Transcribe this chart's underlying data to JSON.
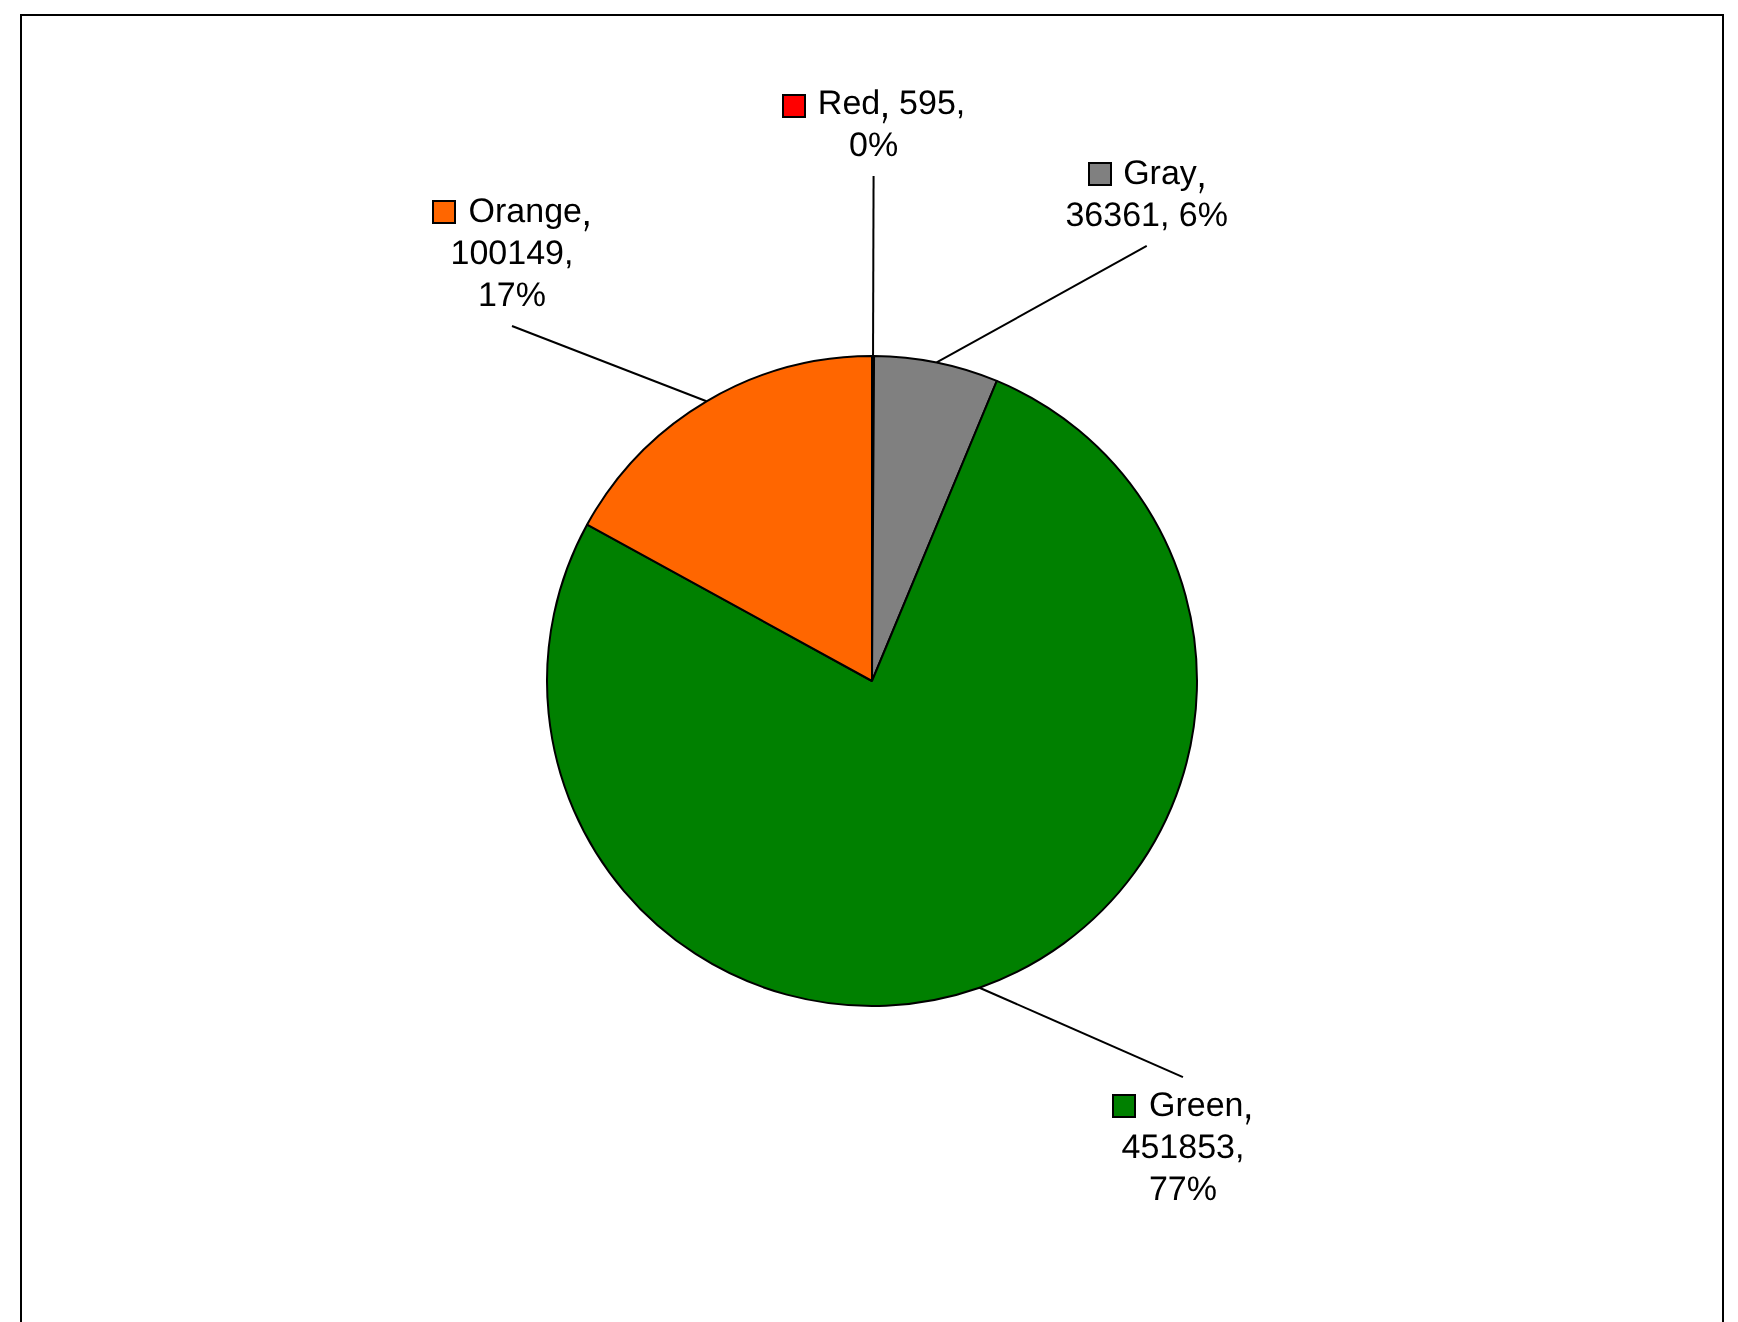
{
  "chart_data": {
    "type": "pie",
    "categories": [
      "Red",
      "Gray",
      "Green",
      "Orange"
    ],
    "values": [
      595,
      36361,
      451853,
      100149
    ],
    "colors": [
      "#ff0000",
      "#808080",
      "#008000",
      "#ff6600"
    ],
    "value_labels": [
      "595, 0%",
      "36361, 6%",
      "451853, 77%",
      "100149, 17%"
    ],
    "legend": "top"
  }
}
